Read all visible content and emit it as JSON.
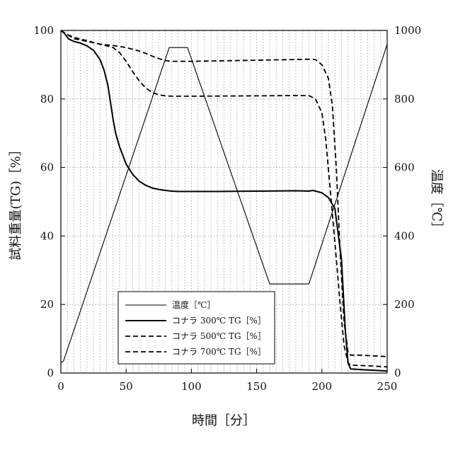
{
  "chart_data": {
    "type": "line",
    "title": "",
    "xlabel": "時間［分］",
    "ylabel": "試料重量(TG)［%］",
    "y2label": "温度［℃］",
    "xlim": [
      0,
      250
    ],
    "ylim": [
      0,
      100
    ],
    "y2lim": [
      0,
      1000
    ],
    "xticks": [
      "0",
      "50",
      "100",
      "150",
      "200",
      "250"
    ],
    "yticks": [
      "0",
      "20",
      "40",
      "60",
      "80",
      "100"
    ],
    "y2ticks": [
      "0",
      "200",
      "400",
      "600",
      "800",
      "1000"
    ],
    "x_minor_grid_step": 5,
    "y_grid_step": 20,
    "grid": true,
    "legend_position": "bottom-center",
    "series": [
      {
        "name": "温度［℃］",
        "axis": "right",
        "style": "thin-solid",
        "x": [
          0,
          2,
          83,
          97,
          160,
          190,
          250
        ],
        "y": [
          30,
          35,
          950,
          950,
          260,
          260,
          960
        ]
      },
      {
        "name": "コナラ 300℃ TG［%］",
        "axis": "left",
        "style": "solid",
        "x": [
          0,
          3,
          6,
          10,
          15,
          20,
          25,
          30,
          33,
          36,
          38,
          40,
          42,
          45,
          50,
          55,
          60,
          65,
          70,
          75,
          80,
          85,
          90,
          100,
          120,
          150,
          180,
          190,
          193,
          200,
          205,
          210,
          215,
          218,
          220,
          222,
          230,
          240,
          250
        ],
        "y": [
          100,
          99,
          97.5,
          96.8,
          96.3,
          95.5,
          94.2,
          91.5,
          88.5,
          84,
          79,
          74,
          70,
          66,
          61,
          58,
          56,
          54.8,
          54,
          53.6,
          53.3,
          53.1,
          53,
          53,
          53,
          53.1,
          53.2,
          53.1,
          53.3,
          52.6,
          51.2,
          48,
          33,
          12,
          3,
          1.2,
          1,
          0.8,
          0.6
        ]
      },
      {
        "name": "コナラ 500℃ TG［%］",
        "axis": "left",
        "style": "dashed",
        "x": [
          0,
          5,
          10,
          20,
          30,
          40,
          45,
          50,
          55,
          60,
          65,
          70,
          75,
          80,
          85,
          90,
          100,
          150,
          180,
          190,
          195,
          200,
          203,
          206,
          210,
          214,
          217,
          220,
          222,
          230,
          240,
          250
        ],
        "y": [
          100,
          98.8,
          97.6,
          96.8,
          96,
          95,
          93.5,
          91,
          88,
          85.3,
          83.2,
          81.9,
          81.2,
          80.9,
          80.8,
          80.8,
          80.8,
          80.9,
          81,
          81,
          80,
          76,
          68,
          55,
          38,
          20,
          8,
          3,
          2.3,
          2.2,
          2,
          1.8
        ]
      },
      {
        "name": "コナラ 700℃ TG［%］",
        "axis": "left",
        "style": "dashed",
        "x": [
          0,
          5,
          10,
          20,
          30,
          40,
          50,
          60,
          65,
          70,
          75,
          80,
          85,
          90,
          100,
          150,
          180,
          190,
          195,
          200,
          205,
          208,
          211,
          214,
          217,
          220,
          222,
          230,
          240,
          250
        ],
        "y": [
          100,
          98.8,
          98,
          97,
          96,
          95.6,
          95,
          94,
          93.3,
          92.5,
          91.8,
          91.2,
          91,
          91,
          91,
          91.3,
          91.5,
          91.6,
          91.5,
          90,
          86,
          78,
          60,
          35,
          15,
          6,
          5.2,
          5.2,
          5,
          4.8
        ]
      }
    ]
  }
}
